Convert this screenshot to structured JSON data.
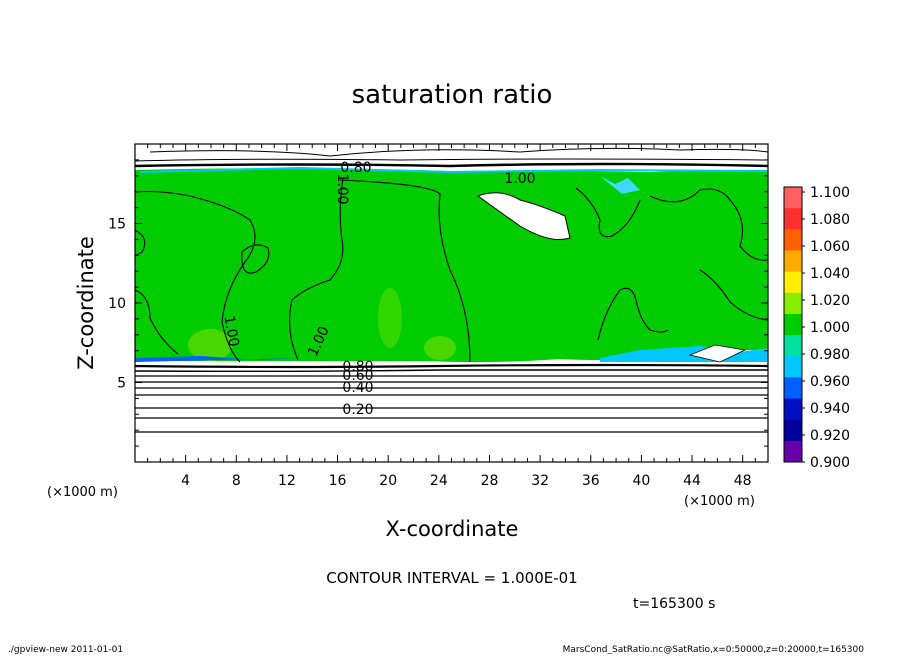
{
  "chart_data": {
    "type": "heatmap",
    "title": "saturation ratio",
    "xlabel": "X-coordinate",
    "ylabel": "Z-coordinate",
    "x_unit": "(×1000 m)",
    "z_unit": "(×1000 m)",
    "xlim": [
      0,
      50
    ],
    "ylim": [
      0,
      20
    ],
    "x_ticks": [
      4,
      8,
      12,
      16,
      20,
      24,
      28,
      32,
      36,
      40,
      44,
      48
    ],
    "y_ticks": [
      5,
      10,
      15
    ],
    "colorbar": {
      "levels": [
        "1.100",
        "1.080",
        "1.060",
        "1.040",
        "1.020",
        "1.000",
        "0.980",
        "0.960",
        "0.940",
        "0.920",
        "0.900"
      ],
      "colors": [
        "#ff6060",
        "#ff3030",
        "#ff6000",
        "#ffaa00",
        "#ffee00",
        "#88ee00",
        "#00cc00",
        "#00e0a0",
        "#00c8ff",
        "#0060ff",
        "#0010c0",
        "#00009a",
        "#6600aa"
      ]
    },
    "contour_interval_text": "CONTOUR INTERVAL = 1.000E-01",
    "contour_labels": [
      "0.20",
      "0.40",
      "0.60",
      "0.80",
      "1.00"
    ],
    "dominant_field_value": 1.0,
    "time_text": "t=165300 s"
  },
  "footer": {
    "left": "./gpview-new   2011-01-01",
    "right": "MarsCond_SatRatio.nc@SatRatio,x=0:50000,z=0:20000,t=165300"
  }
}
